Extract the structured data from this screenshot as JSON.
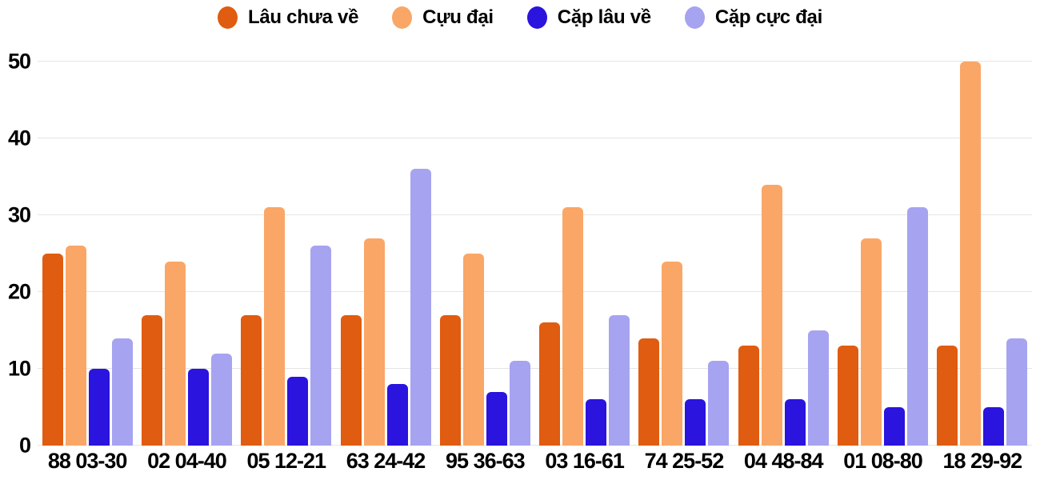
{
  "chart_data": {
    "type": "bar",
    "title": "",
    "categories": [
      "88 03-30",
      "02 04-40",
      "05 12-21",
      "63 24-42",
      "95 36-63",
      "03 16-61",
      "74 25-52",
      "04 48-84",
      "01 08-80",
      "18 29-92"
    ],
    "series": [
      {
        "name": "Lâu chưa về",
        "color": "#e05c10",
        "values": [
          25,
          17,
          17,
          17,
          17,
          16,
          14,
          13,
          13,
          13
        ]
      },
      {
        "name": "Cựu đại",
        "color": "#faa667",
        "values": [
          26,
          24,
          31,
          27,
          25,
          31,
          24,
          34,
          27,
          50
        ]
      },
      {
        "name": "Cặp lâu về",
        "color": "#2a14de",
        "values": [
          10,
          10,
          9,
          8,
          7,
          6,
          6,
          6,
          5,
          5
        ]
      },
      {
        "name": "Cặp cực đại",
        "color": "#a6a3f1",
        "values": [
          14,
          12,
          26,
          36,
          11,
          17,
          11,
          15,
          31,
          14
        ]
      }
    ],
    "xlabel": "",
    "ylabel": "",
    "ylim": [
      0,
      50
    ],
    "yticks": [
      0,
      10,
      20,
      30,
      40,
      50
    ],
    "grid": true,
    "legend_position": "top"
  },
  "colors": {
    "background": "#ffffff",
    "gridline": "#e4e4e4",
    "text": "#000000"
  }
}
